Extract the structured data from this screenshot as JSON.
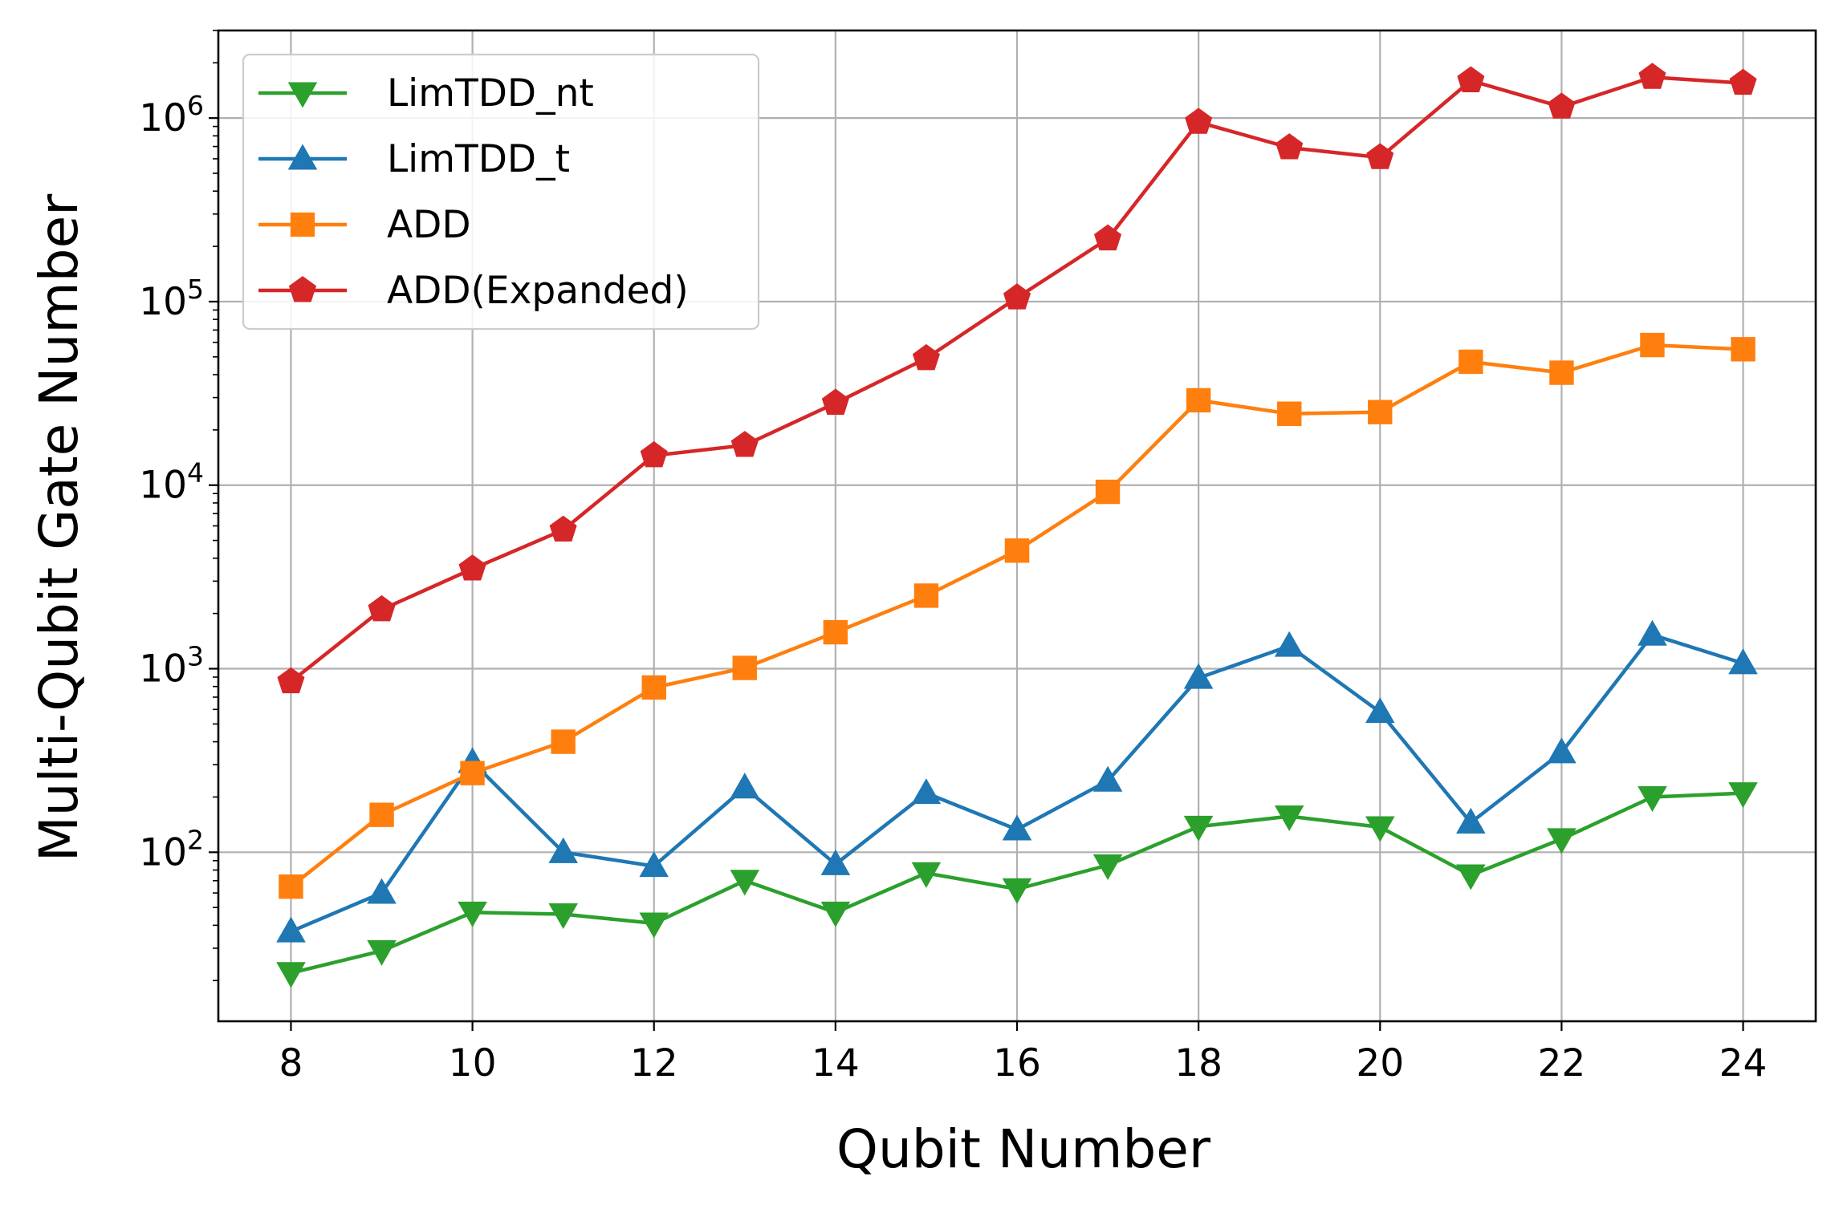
{
  "chart_data": {
    "type": "line",
    "title": "",
    "xlabel": "Qubit Number",
    "ylabel": "Multi-Qubit Gate Number",
    "yscale": "log",
    "xlim": [
      7.2,
      24.8
    ],
    "ylim": [
      12,
      3000000
    ],
    "grid": true,
    "legend_position": "top-left",
    "x": [
      8,
      9,
      10,
      11,
      12,
      13,
      14,
      15,
      16,
      17,
      18,
      19,
      20,
      21,
      22,
      23,
      24
    ],
    "x_ticks": [
      8,
      10,
      12,
      14,
      16,
      18,
      20,
      22,
      24
    ],
    "x_tick_labels": [
      "8",
      "10",
      "12",
      "14",
      "16",
      "18",
      "20",
      "22",
      "24"
    ],
    "y_ticks": [
      {
        "value": 100,
        "base": "10",
        "exp": "2"
      },
      {
        "value": 1000,
        "base": "10",
        "exp": "3"
      },
      {
        "value": 10000,
        "base": "10",
        "exp": "4"
      },
      {
        "value": 100000,
        "base": "10",
        "exp": "5"
      },
      {
        "value": 1000000,
        "base": "10",
        "exp": "6"
      }
    ],
    "series": [
      {
        "name": "LimTDD_nt",
        "color": "#2ca02c",
        "marker": "triangle-down",
        "values": [
          22,
          29,
          47,
          46,
          41,
          70,
          47,
          77,
          63,
          85,
          138,
          157,
          137,
          75,
          118,
          200,
          210
        ]
      },
      {
        "name": "LimTDD_t",
        "color": "#1f77b4",
        "marker": "triangle-up",
        "values": [
          37,
          60,
          310,
          100,
          84,
          225,
          86,
          210,
          133,
          245,
          890,
          1330,
          580,
          145,
          350,
          1530,
          1070
        ]
      },
      {
        "name": "ADD",
        "color": "#ff7f0e",
        "marker": "square",
        "values": [
          65,
          160,
          270,
          400,
          790,
          1010,
          1580,
          2500,
          4400,
          9200,
          29000,
          24500,
          25000,
          47000,
          41000,
          58000,
          55000
        ]
      },
      {
        "name": "ADD(Expanded)",
        "color": "#d62728",
        "marker": "pentagon",
        "values": [
          850,
          2100,
          3500,
          5700,
          14500,
          16500,
          28000,
          49000,
          105000,
          220000,
          950000,
          690000,
          610000,
          1600000,
          1150000,
          1670000,
          1550000
        ]
      }
    ]
  }
}
